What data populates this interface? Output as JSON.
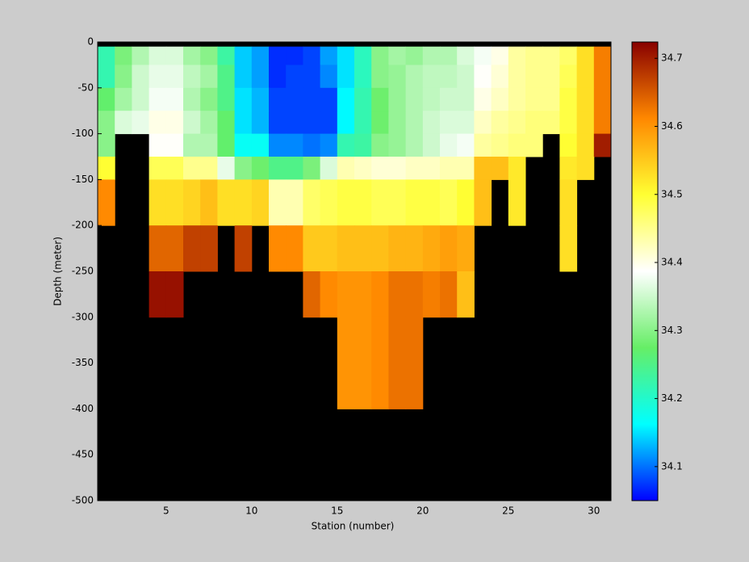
{
  "chart_data": {
    "type": "heatmap",
    "xlabel": "Station (number)",
    "ylabel": "Depth (meter)",
    "x": [
      1,
      2,
      3,
      4,
      5,
      6,
      7,
      8,
      9,
      10,
      11,
      12,
      13,
      14,
      15,
      16,
      17,
      18,
      19,
      20,
      21,
      22,
      23,
      24,
      25,
      26,
      27,
      28,
      29,
      30,
      31
    ],
    "y": [
      0,
      -5,
      -25,
      -50,
      -75,
      -100,
      -125,
      -150,
      -200,
      -250,
      -300,
      -400,
      -500
    ],
    "xlim": [
      1,
      31
    ],
    "xticks": [
      5,
      10,
      15,
      20,
      25,
      30
    ],
    "ylim": [
      -500,
      0
    ],
    "yticks": [
      -500,
      -450,
      -400,
      -350,
      -300,
      -250,
      -200,
      -150,
      -100,
      -50,
      0
    ],
    "clim": [
      34.05,
      34.724
    ],
    "cticks": [
      34.1,
      34.2,
      34.3,
      34.4,
      34.5,
      34.6,
      34.7
    ],
    "colormap": [
      "#0000ff",
      "#00ffff",
      "#66ee66",
      "#ffffff",
      "#ffff33",
      "#ff8800",
      "#880000"
    ],
    "missing_color": "#000000",
    "z": [
      [
        null,
        null,
        null,
        null,
        null,
        null,
        null,
        null,
        null,
        null,
        null,
        null,
        null,
        null,
        null,
        null,
        null,
        null,
        null,
        null,
        null,
        null,
        null,
        null,
        null,
        null,
        null,
        null,
        null,
        null
      ],
      [
        34.22,
        34.29,
        34.33,
        34.36,
        34.36,
        34.32,
        34.3,
        34.23,
        34.14,
        34.12,
        34.07,
        34.07,
        34.08,
        34.12,
        34.15,
        34.21,
        34.3,
        34.32,
        34.31,
        34.33,
        34.33,
        34.36,
        34.38,
        34.4,
        34.44,
        34.45,
        34.45,
        34.47,
        34.53,
        34.62
      ],
      [
        34.22,
        34.3,
        34.35,
        34.37,
        34.37,
        34.34,
        34.32,
        34.25,
        34.14,
        34.12,
        34.07,
        34.08,
        34.08,
        34.11,
        34.15,
        34.21,
        34.3,
        34.31,
        34.33,
        34.34,
        34.34,
        34.35,
        34.39,
        34.41,
        34.44,
        34.45,
        34.45,
        34.48,
        34.53,
        34.62
      ],
      [
        34.27,
        34.32,
        34.35,
        34.38,
        34.38,
        34.33,
        34.3,
        34.25,
        34.15,
        34.13,
        34.08,
        34.08,
        34.08,
        34.08,
        34.16,
        34.22,
        34.28,
        34.31,
        34.33,
        34.34,
        34.35,
        34.35,
        34.4,
        34.42,
        34.44,
        34.45,
        34.45,
        34.49,
        34.53,
        34.62
      ],
      [
        34.3,
        34.36,
        34.37,
        34.4,
        34.4,
        34.35,
        34.32,
        34.27,
        34.15,
        34.13,
        34.08,
        34.08,
        34.08,
        34.08,
        34.16,
        34.22,
        34.28,
        34.31,
        34.33,
        34.35,
        34.36,
        34.36,
        34.42,
        34.44,
        34.45,
        34.46,
        34.46,
        34.49,
        34.53,
        34.62
      ],
      [
        34.3,
        null,
        null,
        34.39,
        34.39,
        34.33,
        34.33,
        34.27,
        34.17,
        34.17,
        34.11,
        34.11,
        34.1,
        34.11,
        34.22,
        34.23,
        34.3,
        34.31,
        34.33,
        34.35,
        34.37,
        34.38,
        34.44,
        34.45,
        34.46,
        34.46,
        null,
        34.5,
        34.53,
        34.7
      ],
      [
        34.5,
        null,
        null,
        34.48,
        34.48,
        34.45,
        34.45,
        34.37,
        34.3,
        34.28,
        34.25,
        34.25,
        34.29,
        34.36,
        34.43,
        34.42,
        34.41,
        34.41,
        34.42,
        34.42,
        34.43,
        34.43,
        34.56,
        34.56,
        34.52,
        null,
        null,
        34.52,
        34.53,
        null
      ],
      [
        34.61,
        null,
        null,
        34.53,
        34.53,
        34.54,
        34.56,
        34.53,
        34.53,
        34.54,
        34.43,
        34.43,
        34.47,
        34.48,
        34.49,
        34.49,
        34.48,
        34.48,
        34.49,
        34.49,
        34.48,
        34.5,
        34.56,
        null,
        34.52,
        null,
        null,
        34.53,
        null,
        null
      ],
      [
        null,
        null,
        null,
        34.64,
        34.64,
        34.67,
        34.67,
        null,
        34.67,
        null,
        34.61,
        34.61,
        34.55,
        34.55,
        34.56,
        34.56,
        34.56,
        34.57,
        34.57,
        34.58,
        34.59,
        34.58,
        null,
        null,
        null,
        null,
        null,
        34.53,
        null,
        null
      ],
      [
        null,
        null,
        null,
        34.71,
        34.71,
        null,
        null,
        null,
        null,
        null,
        null,
        null,
        34.64,
        34.61,
        34.6,
        34.6,
        34.61,
        34.63,
        34.63,
        34.62,
        34.63,
        34.56,
        null,
        null,
        null,
        null,
        null,
        null,
        null,
        null
      ],
      [
        null,
        null,
        null,
        null,
        null,
        null,
        null,
        null,
        null,
        null,
        null,
        null,
        null,
        null,
        34.6,
        34.6,
        34.61,
        34.63,
        34.63,
        null,
        null,
        null,
        null,
        null,
        null,
        null,
        null,
        null,
        null,
        null
      ],
      [
        null,
        null,
        null,
        null,
        null,
        null,
        null,
        null,
        null,
        null,
        null,
        null,
        null,
        null,
        null,
        null,
        null,
        null,
        null,
        null,
        null,
        null,
        null,
        null,
        null,
        null,
        null,
        null,
        null,
        null
      ]
    ]
  }
}
